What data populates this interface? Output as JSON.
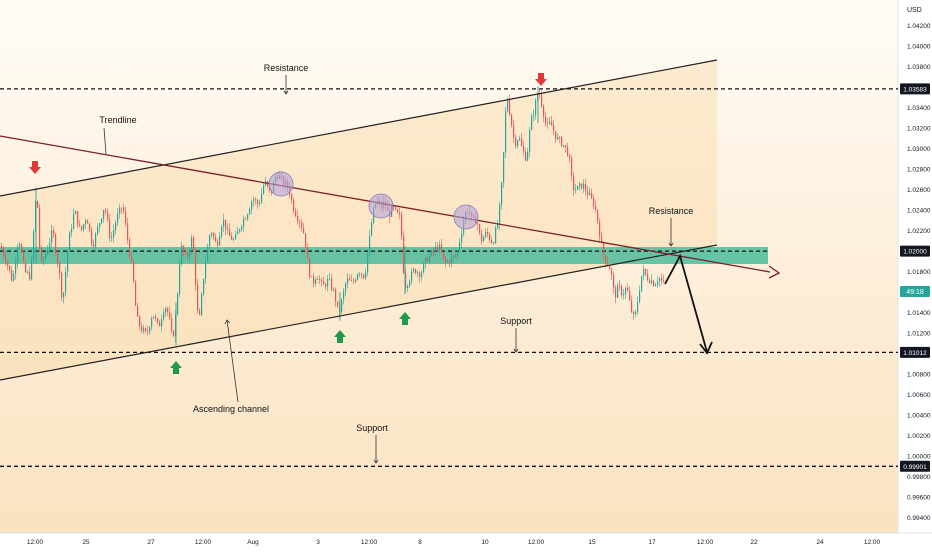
{
  "chart_data": {
    "type": "candlestick",
    "currency": "USD",
    "y_ticks": [
      "1.04200",
      "1.04000",
      "1.03800",
      "1.03400",
      "1.03200",
      "1.03000",
      "1.02800",
      "1.02600",
      "1.02400",
      "1.02200",
      "1.01800",
      "1.01600",
      "1.01400",
      "1.01200",
      "1.00800",
      "1.00600",
      "1.00400",
      "1.00200",
      "1.00000",
      "0.99800",
      "0.99600",
      "0.99400"
    ],
    "ylim": [
      0.9925,
      1.0445
    ],
    "x_ticks": [
      "12:00",
      "25",
      "27",
      "12:00",
      "Aug",
      "3",
      "12:00",
      "8",
      "10",
      "12:00",
      "15",
      "17",
      "12:00",
      "22",
      "24",
      "12:00"
    ],
    "price_levels": [
      {
        "label": "1.03583",
        "value": 1.03583
      },
      {
        "label": "1.02000",
        "value": 1.02
      },
      {
        "label": "1.01012",
        "value": 1.01012
      },
      {
        "label": "0.99901",
        "value": 0.99901
      }
    ],
    "current_price": {
      "label": "49:18",
      "value": 1.0166
    },
    "annotations": [
      {
        "text": "Resistance",
        "id": "resistance-top"
      },
      {
        "text": "Trendline",
        "id": "trendline"
      },
      {
        "text": "Resistance",
        "id": "resistance-right"
      },
      {
        "text": "Support",
        "id": "support-mid"
      },
      {
        "text": "Ascending channel",
        "id": "ascending-channel"
      },
      {
        "text": "Support",
        "id": "support-low"
      }
    ],
    "zone": {
      "from": 1.0195,
      "to": 1.0212
    },
    "price_path": [
      [
        0,
        1.0205
      ],
      [
        6,
        1.019
      ],
      [
        12,
        1.017
      ],
      [
        18,
        1.0215
      ],
      [
        24,
        1.018
      ],
      [
        30,
        1.0175
      ],
      [
        36,
        1.0262
      ],
      [
        40,
        1.0185
      ],
      [
        46,
        1.02
      ],
      [
        52,
        1.022
      ],
      [
        58,
        1.0185
      ],
      [
        62,
        1.015
      ],
      [
        68,
        1.021
      ],
      [
        74,
        1.024
      ],
      [
        80,
        1.0218
      ],
      [
        86,
        1.0235
      ],
      [
        92,
        1.0205
      ],
      [
        98,
        1.0225
      ],
      [
        104,
        1.0245
      ],
      [
        110,
        1.021
      ],
      [
        116,
        1.0232
      ],
      [
        122,
        1.0245
      ],
      [
        128,
        1.0205
      ],
      [
        132,
        1.018
      ],
      [
        136,
        1.0135
      ],
      [
        140,
        1.0125
      ],
      [
        146,
        1.0118
      ],
      [
        152,
        1.014
      ],
      [
        158,
        1.0125
      ],
      [
        164,
        1.0148
      ],
      [
        168,
        1.0138
      ],
      [
        172,
        1.0112
      ],
      [
        176,
        1.0145
      ],
      [
        180,
        1.0205
      ],
      [
        186,
        1.0192
      ],
      [
        192,
        1.0215
      ],
      [
        198,
        1.0125
      ],
      [
        204,
        1.0185
      ],
      [
        210,
        1.0222
      ],
      [
        216,
        1.0205
      ],
      [
        222,
        1.0232
      ],
      [
        228,
        1.0215
      ],
      [
        234,
        1.021
      ],
      [
        240,
        1.0226
      ],
      [
        246,
        1.0236
      ],
      [
        252,
        1.0252
      ],
      [
        258,
        1.0245
      ],
      [
        264,
        1.0268
      ],
      [
        270,
        1.0255
      ],
      [
        276,
        1.0276
      ],
      [
        282,
        1.0268
      ],
      [
        288,
        1.0262
      ],
      [
        292,
        1.0245
      ],
      [
        296,
        1.0235
      ],
      [
        300,
        1.0228
      ],
      [
        304,
        1.0215
      ],
      [
        308,
        1.0182
      ],
      [
        312,
        1.0168
      ],
      [
        316,
        1.0178
      ],
      [
        322,
        1.0165
      ],
      [
        328,
        1.0172
      ],
      [
        334,
        1.0158
      ],
      [
        338,
        1.0138
      ],
      [
        342,
        1.0155
      ],
      [
        346,
        1.0172
      ],
      [
        352,
        1.0168
      ],
      [
        358,
        1.0182
      ],
      [
        364,
        1.0175
      ],
      [
        368,
        1.0205
      ],
      [
        372,
        1.0235
      ],
      [
        376,
        1.025
      ],
      [
        380,
        1.0242
      ],
      [
        384,
        1.0248
      ],
      [
        388,
        1.0235
      ],
      [
        392,
        1.0242
      ],
      [
        396,
        1.0236
      ],
      [
        400,
        1.0232
      ],
      [
        404,
        1.0165
      ],
      [
        408,
        1.0172
      ],
      [
        414,
        1.0182
      ],
      [
        420,
        1.0178
      ],
      [
        426,
        1.0192
      ],
      [
        432,
        1.0198
      ],
      [
        438,
        1.0206
      ],
      [
        444,
        1.0188
      ],
      [
        450,
        1.0192
      ],
      [
        456,
        1.0196
      ],
      [
        460,
        1.0215
      ],
      [
        464,
        1.0235
      ],
      [
        468,
        1.0242
      ],
      [
        472,
        1.0228
      ],
      [
        476,
        1.0232
      ],
      [
        480,
        1.021
      ],
      [
        486,
        1.0218
      ],
      [
        492,
        1.0208
      ],
      [
        498,
        1.023
      ],
      [
        502,
        1.0275
      ],
      [
        506,
        1.0355
      ],
      [
        510,
        1.033
      ],
      [
        514,
        1.0305
      ],
      [
        518,
        1.0312
      ],
      [
        522,
        1.0298
      ],
      [
        526,
        1.029
      ],
      [
        530,
        1.0325
      ],
      [
        534,
        1.034
      ],
      [
        538,
        1.0358
      ],
      [
        542,
        1.034
      ],
      [
        546,
        1.032
      ],
      [
        550,
        1.0325
      ],
      [
        556,
        1.031
      ],
      [
        562,
        1.0305
      ],
      [
        568,
        1.0295
      ],
      [
        572,
        1.0262
      ],
      [
        576,
        1.026
      ],
      [
        582,
        1.0265
      ],
      [
        588,
        1.0255
      ],
      [
        594,
        1.0245
      ],
      [
        598,
        1.0225
      ],
      [
        602,
        1.0198
      ],
      [
        606,
        1.019
      ],
      [
        610,
        1.0182
      ],
      [
        614,
        1.0155
      ],
      [
        618,
        1.0165
      ],
      [
        622,
        1.0158
      ],
      [
        626,
        1.0165
      ],
      [
        630,
        1.0145
      ],
      [
        634,
        1.0132
      ],
      [
        638,
        1.0158
      ],
      [
        642,
        1.0182
      ],
      [
        646,
        1.0175
      ],
      [
        650,
        1.0172
      ],
      [
        654,
        1.0168
      ],
      [
        658,
        1.0175
      ],
      [
        664,
        1.0166
      ]
    ]
  }
}
